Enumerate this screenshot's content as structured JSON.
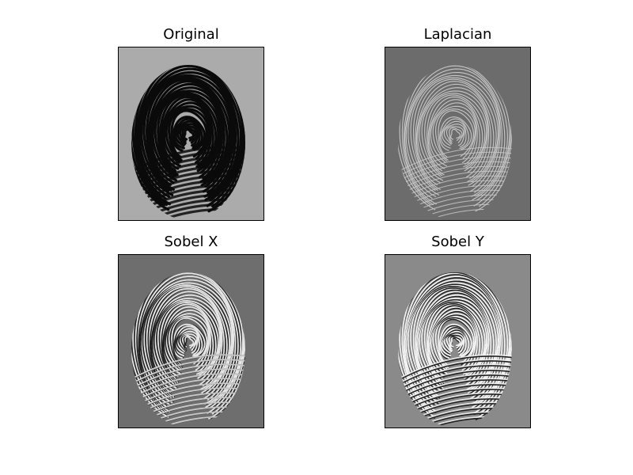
{
  "figure": {
    "panels": [
      {
        "id": "original",
        "title": "Original",
        "background": "#ababab",
        "ridge_color": "#0a0a0a"
      },
      {
        "id": "laplacian",
        "title": "Laplacian",
        "background": "#6c6c6c",
        "ridge_color": "#c8c8c8"
      },
      {
        "id": "sobel_x",
        "title": "Sobel X",
        "background": "#6e6e6e",
        "ridge_color": "#e6e6e6"
      },
      {
        "id": "sobel_y",
        "title": "Sobel Y",
        "background": "#8a8a8a",
        "ridge_color": "#f2f2f2"
      }
    ]
  }
}
